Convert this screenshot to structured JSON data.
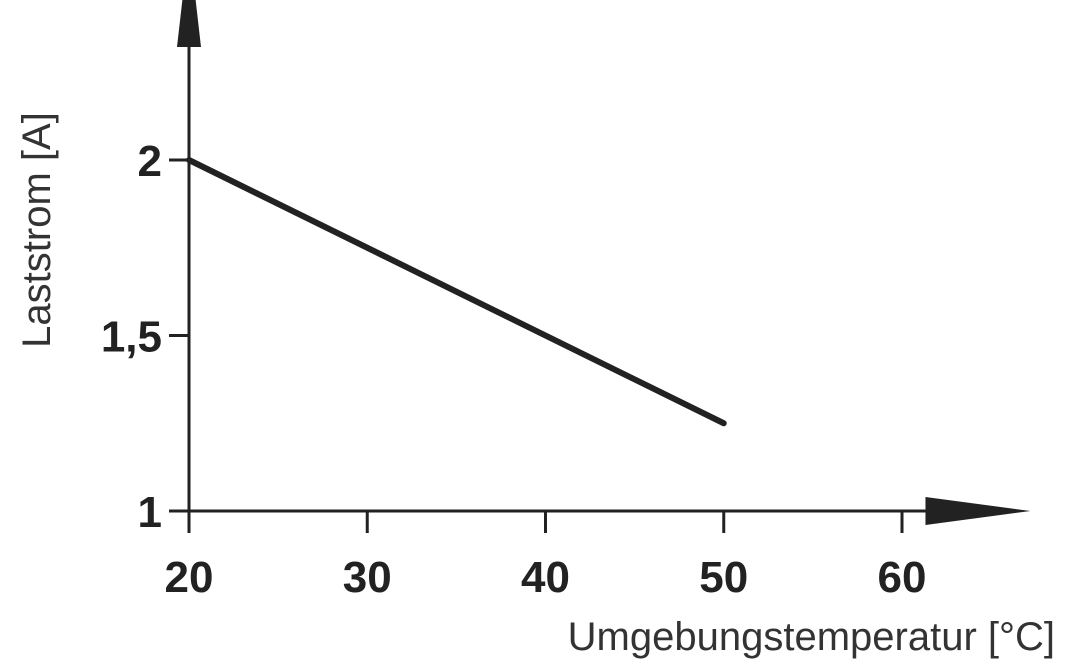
{
  "chart_data": {
    "type": "line",
    "title": "",
    "xlabel": "Umgebungstemperatur [°C]",
    "ylabel": "Laststrom [A]",
    "xlim": [
      20,
      63
    ],
    "ylim": [
      1,
      2.45
    ],
    "x_ticks": [
      {
        "value": 20,
        "label": "20"
      },
      {
        "value": 30,
        "label": "30"
      },
      {
        "value": 40,
        "label": "40"
      },
      {
        "value": 50,
        "label": "50"
      },
      {
        "value": 60,
        "label": "60"
      }
    ],
    "y_ticks": [
      {
        "value": 1,
        "label": "1"
      },
      {
        "value": 1.5,
        "label": "1,5"
      },
      {
        "value": 2,
        "label": "2"
      }
    ],
    "grid": false,
    "series": [
      {
        "x": [
          20,
          50
        ],
        "y": [
          2.0,
          1.25
        ],
        "color": "#222222"
      }
    ]
  }
}
